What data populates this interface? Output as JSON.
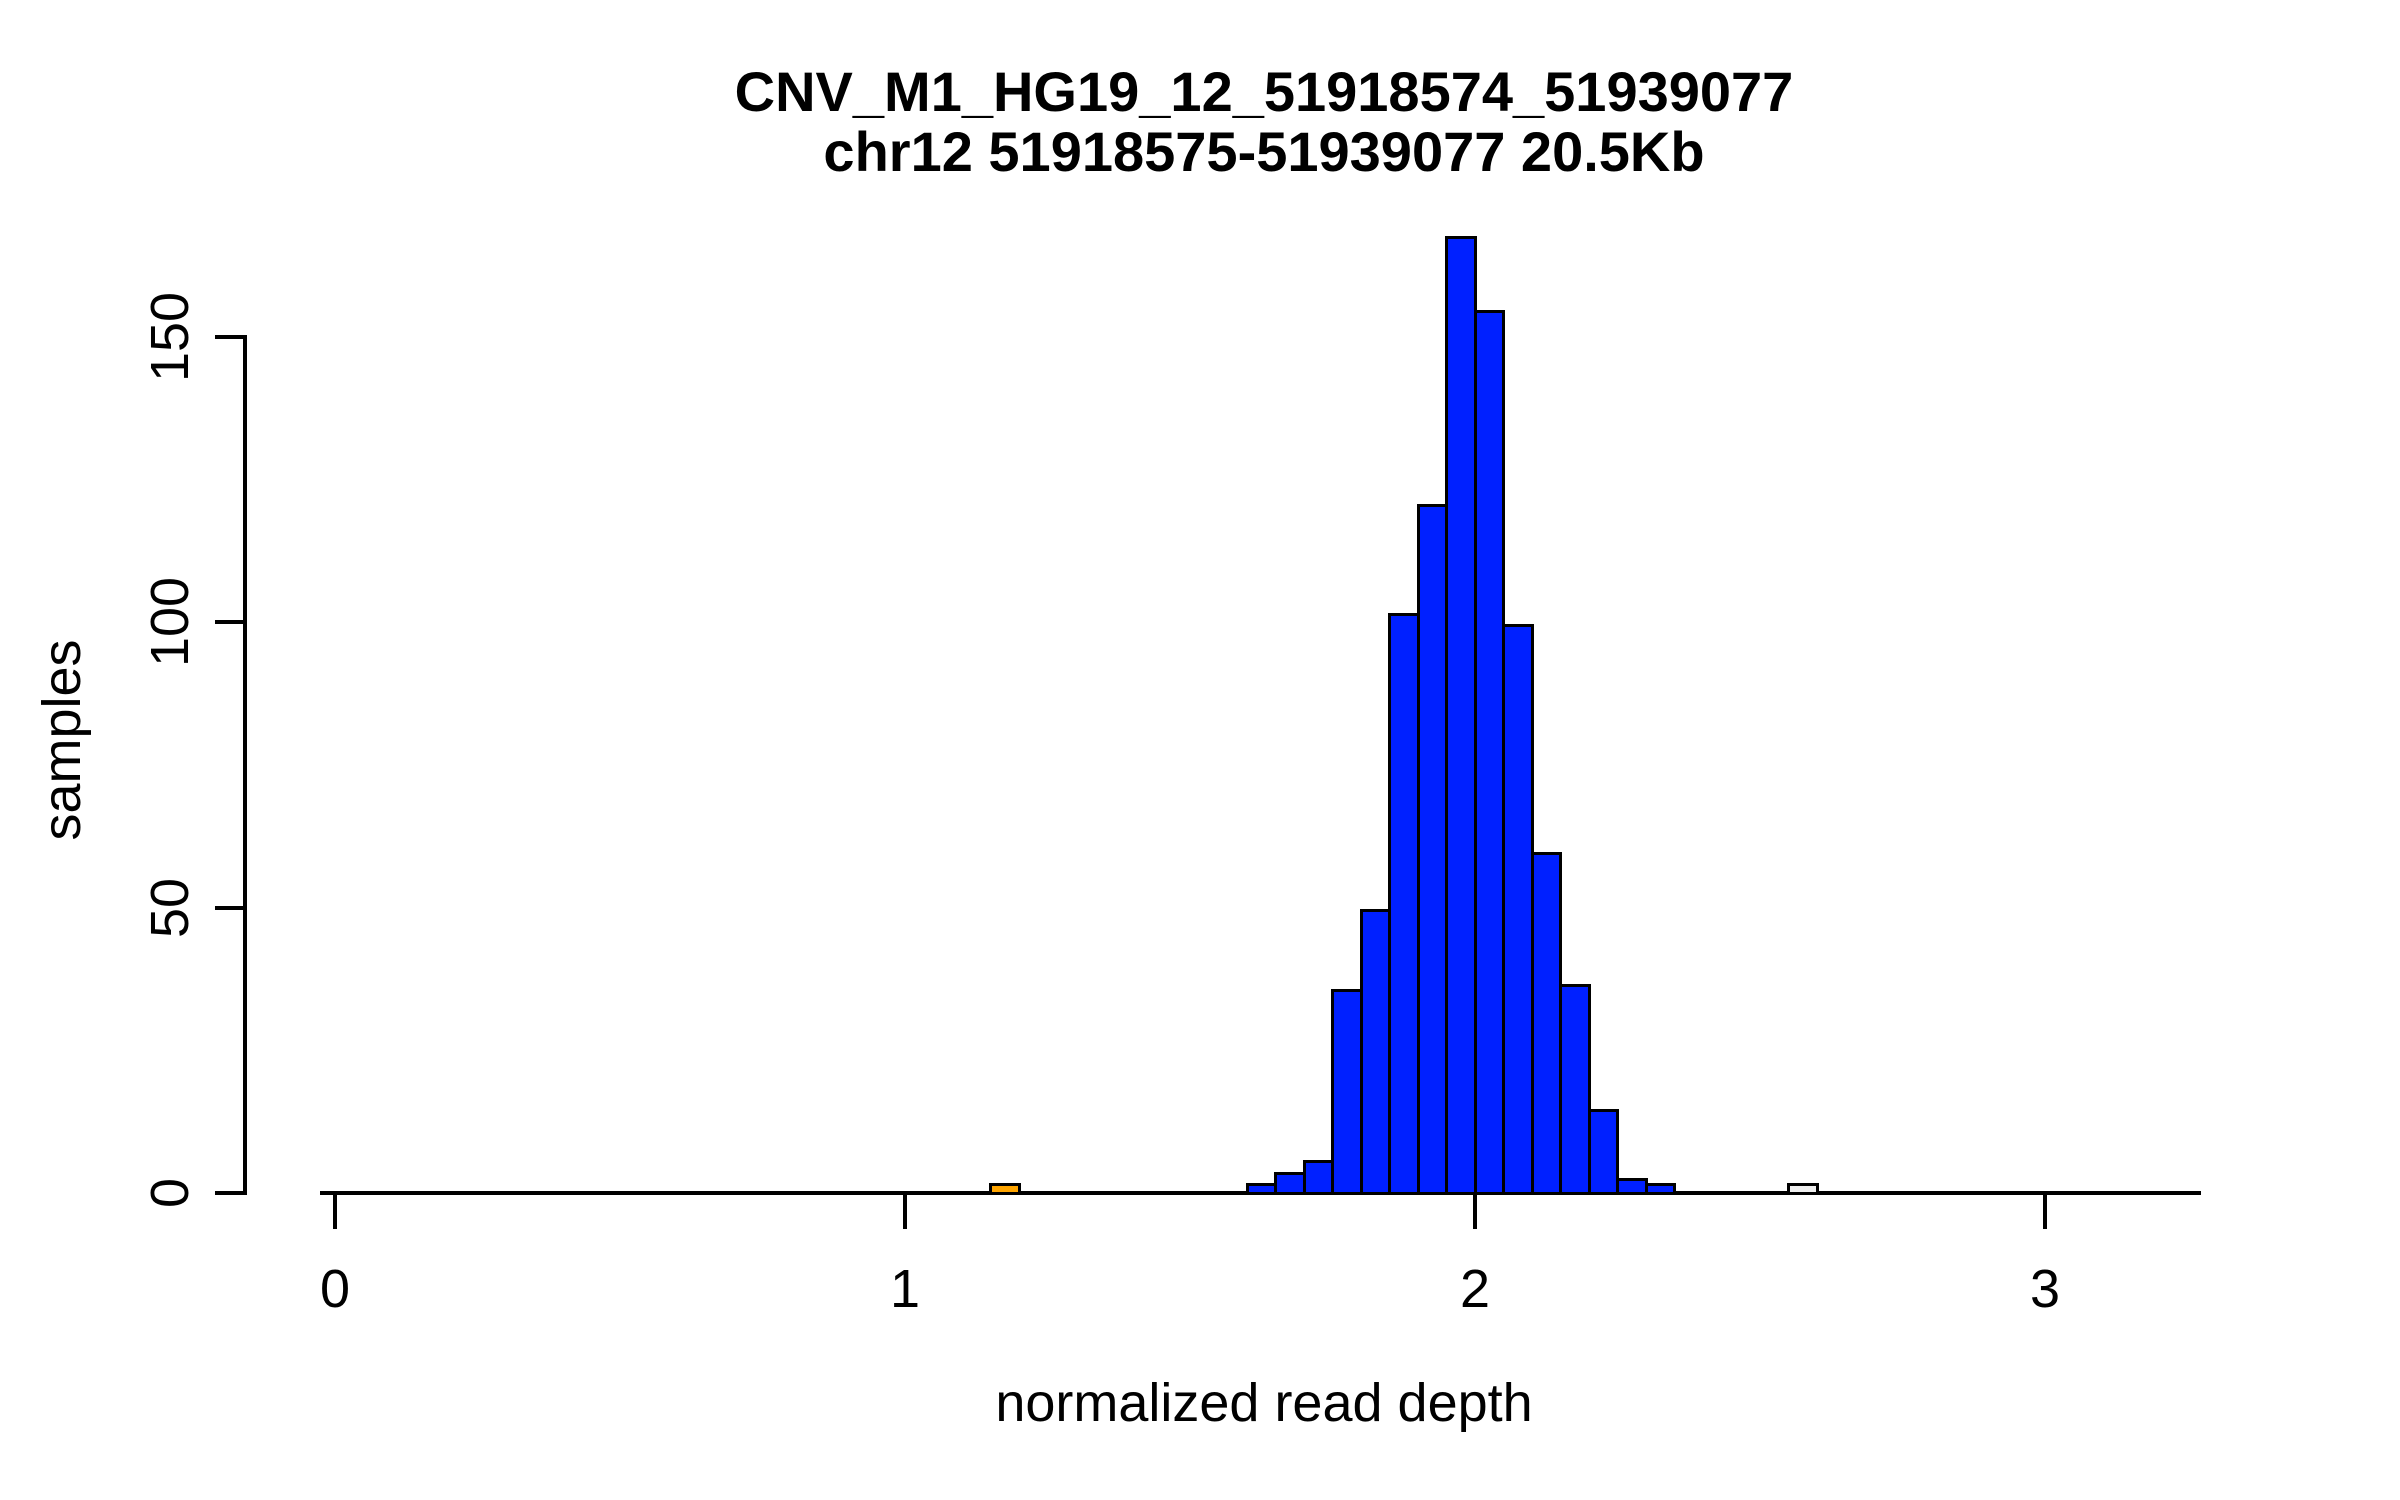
{
  "title": {
    "line1": "CNV_M1_HG19_12_51918574_51939077",
    "line2": "chr12 51918575-51939077 20.5Kb"
  },
  "axes": {
    "x": {
      "label": "normalized read depth",
      "tick_labels": [
        "0",
        "1",
        "2",
        "3"
      ],
      "tick_values": [
        0,
        1,
        2,
        3
      ]
    },
    "y": {
      "label": "samples",
      "tick_labels": [
        "0",
        "50",
        "100",
        "150"
      ],
      "tick_values": [
        0,
        50,
        100,
        150
      ]
    }
  },
  "chart_data": {
    "type": "bar",
    "subtype": "histogram",
    "title": "CNV_M1_HG19_12_51918574_51939077 / chr12 51918575-51939077 20.5Kb",
    "xlabel": "normalized read depth",
    "ylabel": "samples",
    "xlim": [
      0,
      3.3
    ],
    "ylim": [
      0,
      170
    ],
    "grid": "off",
    "legend": "none",
    "bin_width": 0.05,
    "default_fill": "#0020FF",
    "bar_border_color": "#000000",
    "bins": [
      {
        "start": 1.15,
        "count": 1,
        "fill": "#FFA500"
      },
      {
        "start": 1.6,
        "count": 1,
        "fill": "#0020FF"
      },
      {
        "start": 1.65,
        "count": 3,
        "fill": "#0020FF"
      },
      {
        "start": 1.7,
        "count": 5,
        "fill": "#0020FF"
      },
      {
        "start": 1.75,
        "count": 35,
        "fill": "#0020FF"
      },
      {
        "start": 1.8,
        "count": 49,
        "fill": "#0020FF"
      },
      {
        "start": 1.85,
        "count": 101,
        "fill": "#0020FF"
      },
      {
        "start": 1.9,
        "count": 120,
        "fill": "#0020FF"
      },
      {
        "start": 1.95,
        "count": 167,
        "fill": "#0020FF"
      },
      {
        "start": 2.0,
        "count": 154,
        "fill": "#0020FF"
      },
      {
        "start": 2.05,
        "count": 99,
        "fill": "#0020FF"
      },
      {
        "start": 2.1,
        "count": 59,
        "fill": "#0020FF"
      },
      {
        "start": 2.15,
        "count": 36,
        "fill": "#0020FF"
      },
      {
        "start": 2.2,
        "count": 14,
        "fill": "#0020FF"
      },
      {
        "start": 2.25,
        "count": 2,
        "fill": "#0020FF"
      },
      {
        "start": 2.3,
        "count": 1,
        "fill": "#0020FF"
      },
      {
        "start": 2.55,
        "count": 1,
        "fill": "#EFEFEF"
      }
    ]
  },
  "colors": {
    "background": "#FFFFFF",
    "text": "#000000",
    "axis": "#000000"
  }
}
